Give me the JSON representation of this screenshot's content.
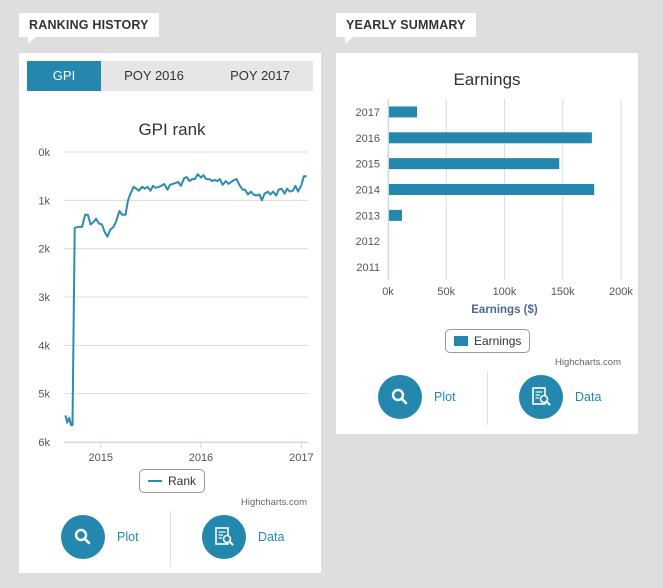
{
  "ranking": {
    "heading": "RANKING HISTORY",
    "tabs": [
      {
        "label": "GPI",
        "active": true
      },
      {
        "label": "POY 2016",
        "active": false
      },
      {
        "label": "POY 2017",
        "active": false
      }
    ],
    "credit": "Highcharts.com",
    "plot_label": "Plot",
    "data_label": "Data"
  },
  "summary": {
    "heading": "YEARLY SUMMARY",
    "credit": "Highcharts.com",
    "plot_label": "Plot",
    "data_label": "Data"
  },
  "colors": {
    "accent": "#2487ae",
    "line": "#2b8cb4",
    "bar": "#2487ae"
  },
  "icons": [
    "search-icon",
    "data-document-icon"
  ],
  "chart_data": [
    {
      "type": "line",
      "title": "GPI rank",
      "xlabel": "",
      "ylabel": "",
      "y_reversed": true,
      "ylim": [
        0,
        6000
      ],
      "yticks": [
        0,
        1000,
        2000,
        3000,
        4000,
        5000,
        6000
      ],
      "ytick_labels": [
        "0k",
        "1k",
        "2k",
        "3k",
        "4k",
        "5k",
        "6k"
      ],
      "xlim": [
        "2014-08-20",
        "2017-01-25"
      ],
      "xticks": [
        "2015-01-01",
        "2016-01-01",
        "2017-01-01"
      ],
      "xtick_labels": [
        "2015",
        "2016",
        "2017"
      ],
      "grid": true,
      "legend_position": "bottom-center",
      "series": [
        {
          "name": "Rank",
          "x": [
            "2014-08-25",
            "2014-09-01",
            "2014-09-08",
            "2014-09-15",
            "2014-09-20",
            "2014-09-28",
            "2014-10-10",
            "2014-10-25",
            "2014-11-05",
            "2014-11-15",
            "2014-11-25",
            "2014-12-05",
            "2014-12-15",
            "2014-12-25",
            "2015-01-05",
            "2015-01-15",
            "2015-01-25",
            "2015-02-05",
            "2015-02-15",
            "2015-02-25",
            "2015-03-10",
            "2015-03-20",
            "2015-04-01",
            "2015-04-10",
            "2015-04-20",
            "2015-05-01",
            "2015-05-10",
            "2015-05-20",
            "2015-06-01",
            "2015-06-10",
            "2015-06-20",
            "2015-07-01",
            "2015-07-10",
            "2015-07-20",
            "2015-08-01",
            "2015-08-10",
            "2015-08-20",
            "2015-09-01",
            "2015-09-10",
            "2015-09-20",
            "2015-10-01",
            "2015-10-10",
            "2015-10-20",
            "2015-11-01",
            "2015-11-10",
            "2015-11-20",
            "2015-12-01",
            "2015-12-10",
            "2015-12-20",
            "2016-01-01",
            "2016-01-10",
            "2016-01-20",
            "2016-02-01",
            "2016-02-10",
            "2016-02-20",
            "2016-03-01",
            "2016-03-10",
            "2016-03-20",
            "2016-04-01",
            "2016-04-10",
            "2016-04-20",
            "2016-05-01",
            "2016-05-10",
            "2016-05-20",
            "2016-06-01",
            "2016-06-10",
            "2016-06-20",
            "2016-07-01",
            "2016-07-10",
            "2016-07-20",
            "2016-08-01",
            "2016-08-10",
            "2016-08-20",
            "2016-09-01",
            "2016-09-10",
            "2016-09-20",
            "2016-10-01",
            "2016-10-10",
            "2016-10-20",
            "2016-11-01",
            "2016-11-10",
            "2016-11-20",
            "2016-12-01",
            "2016-12-10",
            "2016-12-20",
            "2017-01-01",
            "2017-01-10",
            "2017-01-20"
          ],
          "y": [
            5450,
            5600,
            5500,
            5650,
            5650,
            1570,
            1550,
            1550,
            1300,
            1300,
            1500,
            1450,
            1380,
            1480,
            1500,
            1650,
            1750,
            1600,
            1560,
            1450,
            1220,
            1300,
            1300,
            1000,
            850,
            720,
            760,
            800,
            720,
            760,
            720,
            800,
            700,
            740,
            720,
            700,
            660,
            780,
            680,
            660,
            640,
            620,
            700,
            540,
            520,
            600,
            560,
            560,
            460,
            530,
            480,
            560,
            560,
            600,
            580,
            600,
            560,
            680,
            600,
            660,
            620,
            580,
            560,
            680,
            780,
            780,
            880,
            820,
            880,
            900,
            880,
            1000,
            860,
            820,
            880,
            820,
            900,
            780,
            760,
            860,
            760,
            820,
            800,
            700,
            820,
            680,
            500,
            500
          ]
        }
      ]
    },
    {
      "type": "bar",
      "orientation": "horizontal",
      "title": "Earnings",
      "xlabel": "",
      "ylabel": "Earnings ($)",
      "categories": [
        "2017",
        "2016",
        "2015",
        "2014",
        "2013",
        "2012",
        "2011"
      ],
      "ylim": [
        0,
        200000
      ],
      "ticks": [
        0,
        50000,
        100000,
        150000,
        200000
      ],
      "tick_labels": [
        "0k",
        "50k",
        "100k",
        "150k",
        "200k"
      ],
      "grid": true,
      "legend_position": "bottom-center",
      "series": [
        {
          "name": "Earnings",
          "values": [
            25000,
            175000,
            147000,
            177000,
            12000,
            0,
            0
          ]
        }
      ]
    }
  ]
}
